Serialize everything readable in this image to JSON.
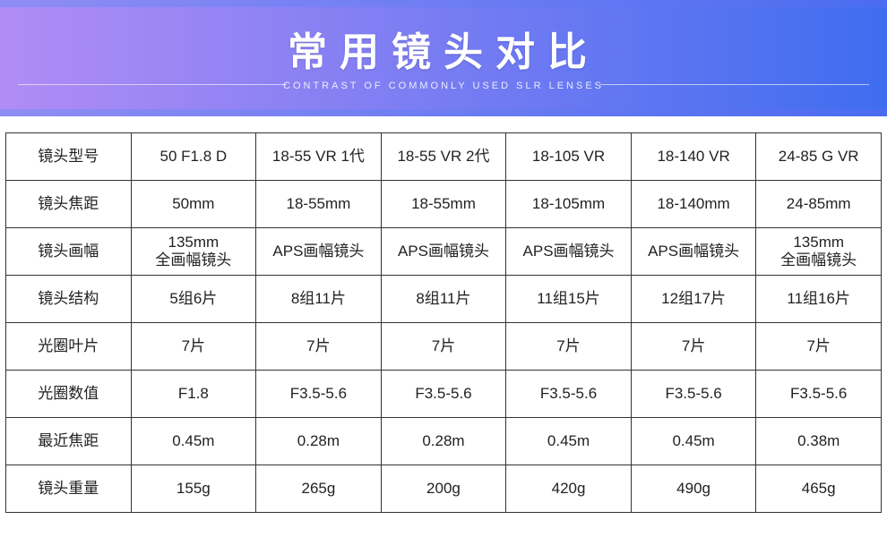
{
  "banner": {
    "title": "常用镜头对比",
    "subtitle": "CONTRAST OF COMMONLY USED SLR LENSES",
    "gradient_start": "#b18cf5",
    "gradient_end": "#3f6df0",
    "stripe_start": "#8f8df5",
    "stripe_end": "#4b6cf0",
    "title_color": "#ffffff",
    "subtitle_color": "rgba(255,255,255,0.85)"
  },
  "table": {
    "border_color": "#333333",
    "text_color": "#222222",
    "cell_bg": "#ffffff",
    "row_labels": [
      "镜头型号",
      "镜头焦距",
      "镜头画幅",
      "镜头结构",
      "光圈叶片",
      "光圈数值",
      "最近焦距",
      "镜头重量"
    ],
    "columns": [
      {
        "model": "50 F1.8 D",
        "focal": "50mm",
        "format": "135mm\n全画幅镜头",
        "construction": "5组6片",
        "blades": "7片",
        "aperture": "F1.8",
        "min_focus": "0.45m",
        "weight": "155g"
      },
      {
        "model": "18-55 VR 1代",
        "focal": "18-55mm",
        "format": "APS画幅镜头",
        "construction": "8组11片",
        "blades": "7片",
        "aperture": "F3.5-5.6",
        "min_focus": "0.28m",
        "weight": "265g"
      },
      {
        "model": "18-55 VR 2代",
        "focal": "18-55mm",
        "format": "APS画幅镜头",
        "construction": "8组11片",
        "blades": "7片",
        "aperture": "F3.5-5.6",
        "min_focus": "0.28m",
        "weight": "200g"
      },
      {
        "model": "18-105 VR",
        "focal": "18-105mm",
        "format": "APS画幅镜头",
        "construction": "11组15片",
        "blades": "7片",
        "aperture": "F3.5-5.6",
        "min_focus": "0.45m",
        "weight": "420g"
      },
      {
        "model": "18-140 VR",
        "focal": "18-140mm",
        "format": "APS画幅镜头",
        "construction": "12组17片",
        "blades": "7片",
        "aperture": "F3.5-5.6",
        "min_focus": "0.45m",
        "weight": "490g"
      },
      {
        "model": "24-85 G VR",
        "focal": "24-85mm",
        "format": "135mm\n全画幅镜头",
        "construction": "11组16片",
        "blades": "7片",
        "aperture": "F3.5-5.6",
        "min_focus": "0.38m",
        "weight": "465g"
      }
    ]
  }
}
